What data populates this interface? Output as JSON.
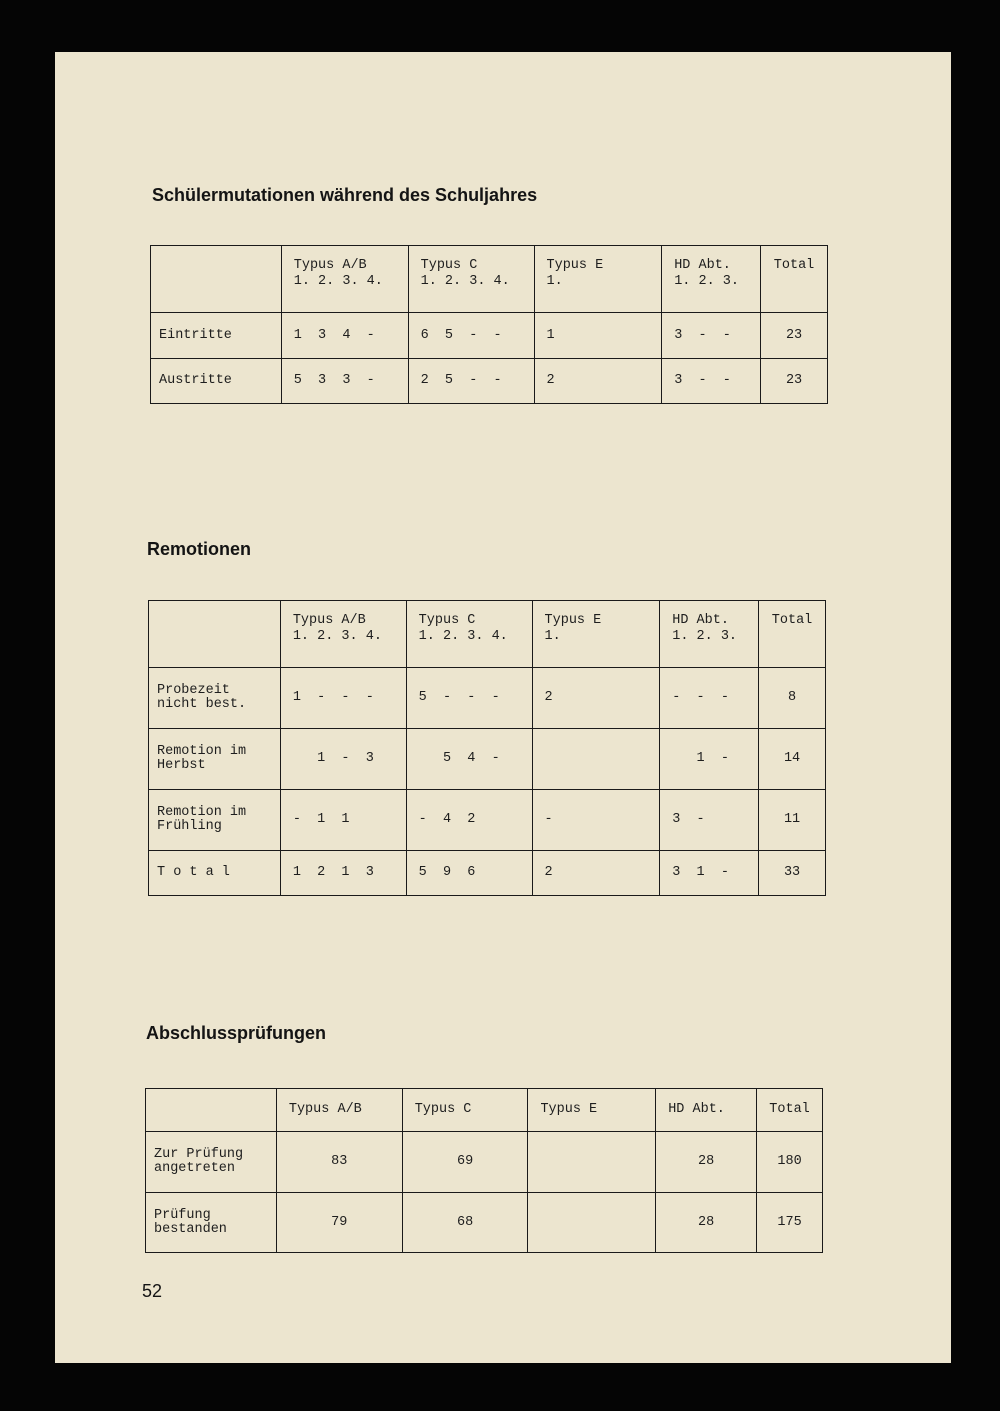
{
  "page_number": "52",
  "sections": [
    {
      "title": "Schülermutationen während des Schuljahres",
      "headers": [
        "",
        "Typus A/B\n1. 2. 3. 4.",
        "Typus C\n1. 2. 3. 4.",
        "Typus E\n1.",
        "HD Abt.\n1. 2. 3.",
        "Total"
      ],
      "rows": [
        [
          "Eintritte",
          "1  3  4  -",
          "6  5  -  -",
          "1",
          "3  -  -",
          "23"
        ],
        [
          "Austritte",
          "5  3  3  -",
          "2  5  -  -",
          "2",
          "3  -  -",
          "23"
        ]
      ]
    },
    {
      "title": "Remotionen",
      "headers": [
        "",
        "Typus A/B\n1. 2. 3. 4.",
        "Typus C\n1. 2. 3. 4.",
        "Typus E\n1.",
        "HD Abt.\n1. 2. 3.",
        "Total"
      ],
      "rows": [
        [
          "Probezeit\nnicht best.",
          "1  -  -  -",
          "5  -  -  -",
          "2",
          "-  -  -",
          "8"
        ],
        [
          "Remotion im\nHerbst",
          "   1  -  3",
          "   5  4  -",
          "",
          "   1  -",
          "14"
        ],
        [
          "Remotion im\nFrühling",
          "-  1  1",
          "-  4  2",
          "-",
          "3  -",
          "11"
        ],
        [
          "T o t a l",
          "1  2  1  3",
          "5  9  6",
          "2",
          "3  1  -",
          "33"
        ]
      ]
    },
    {
      "title": "Abschlussprüfungen",
      "headers": [
        "",
        "Typus A/B",
        "Typus C",
        "Typus E",
        "HD Abt.",
        "Total"
      ],
      "rows": [
        [
          "Zur Prüfung\nangetreten",
          "83",
          "69",
          "",
          "28",
          "180"
        ],
        [
          "Prüfung\nbestanden",
          "79",
          "68",
          "",
          "28",
          "175"
        ]
      ]
    }
  ]
}
